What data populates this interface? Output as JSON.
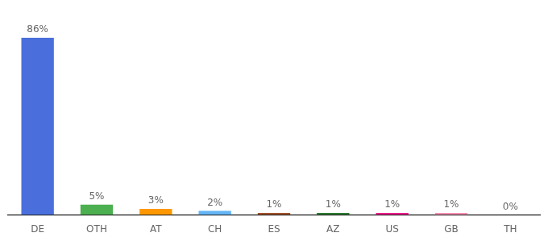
{
  "chart_data": {
    "type": "bar",
    "categories": [
      "DE",
      "OTH",
      "AT",
      "CH",
      "ES",
      "AZ",
      "US",
      "GB",
      "TH"
    ],
    "values": [
      86,
      5,
      3,
      2,
      1,
      1,
      1,
      1,
      0
    ],
    "value_labels": [
      "86%",
      "5%",
      "3%",
      "2%",
      "1%",
      "1%",
      "1%",
      "1%",
      "0%"
    ],
    "colors": [
      "#4a6fdc",
      "#4caf50",
      "#ff9800",
      "#64b5f6",
      "#a0522d",
      "#2e7d32",
      "#e91e8c",
      "#f48fb1",
      "#cccccc"
    ],
    "ylim": [
      0,
      95
    ],
    "data_labels": true,
    "tick_labels": "x",
    "grid": false
  }
}
